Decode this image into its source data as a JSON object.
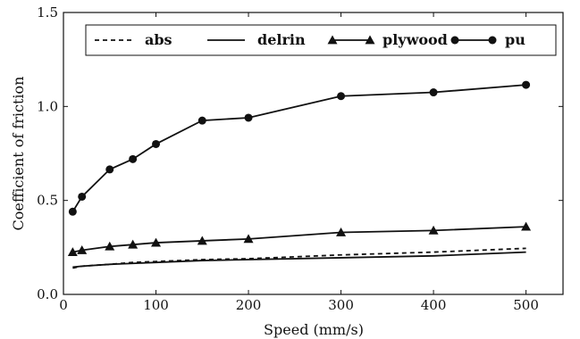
{
  "chart_data": {
    "type": "line",
    "xlabel": "Speed (mm/s)",
    "ylabel": "Coefficient of friction",
    "xlim": [
      0,
      540
    ],
    "ylim": [
      0,
      1.5
    ],
    "x_ticks": [
      0,
      100,
      200,
      300,
      400,
      500
    ],
    "y_ticks": [
      0.0,
      0.5,
      1.0,
      1.5
    ],
    "x_tick_labels": [
      "0",
      "100",
      "200",
      "300",
      "400",
      "500"
    ],
    "y_tick_labels": [
      "0.0",
      "0.5",
      "1.0",
      "1.5"
    ],
    "grid": false,
    "legend_position": "top",
    "series": [
      {
        "name": "abs",
        "style": "dashed",
        "marker": "none",
        "x": [
          10,
          20,
          50,
          75,
          100,
          150,
          200,
          300,
          400,
          500
        ],
        "y": [
          0.14,
          0.15,
          0.16,
          0.17,
          0.175,
          0.185,
          0.19,
          0.21,
          0.225,
          0.245
        ]
      },
      {
        "name": "delrin",
        "style": "solid",
        "marker": "none",
        "x": [
          10,
          20,
          50,
          75,
          100,
          150,
          200,
          300,
          400,
          500
        ],
        "y": [
          0.145,
          0.15,
          0.16,
          0.165,
          0.17,
          0.18,
          0.185,
          0.195,
          0.205,
          0.225
        ]
      },
      {
        "name": "plywood",
        "style": "solid",
        "marker": "triangle",
        "x": [
          10,
          20,
          50,
          75,
          100,
          150,
          200,
          300,
          400,
          500
        ],
        "y": [
          0.225,
          0.235,
          0.255,
          0.265,
          0.275,
          0.285,
          0.295,
          0.33,
          0.34,
          0.36
        ]
      },
      {
        "name": "pu",
        "style": "solid",
        "marker": "circle",
        "x": [
          10,
          20,
          50,
          75,
          100,
          150,
          200,
          300,
          400,
          500
        ],
        "y": [
          0.44,
          0.52,
          0.665,
          0.72,
          0.8,
          0.925,
          0.94,
          1.055,
          1.075,
          1.115
        ]
      }
    ]
  }
}
